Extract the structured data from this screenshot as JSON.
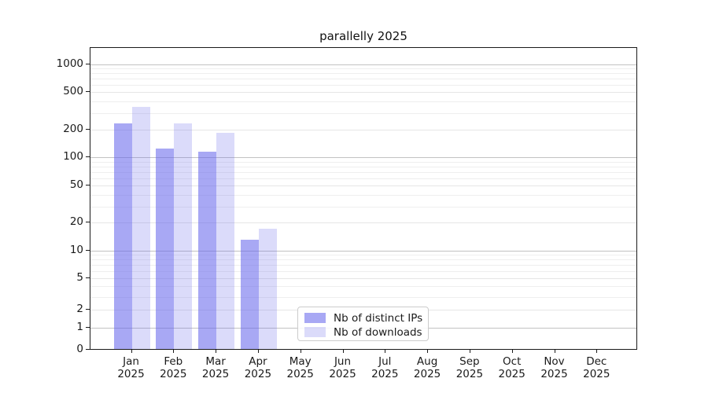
{
  "title": "parallelly 2025",
  "chart_data": {
    "type": "bar",
    "title": "parallelly 2025",
    "x_categories": [
      "Jan",
      "Feb",
      "Mar",
      "Apr",
      "May",
      "Jun",
      "Jul",
      "Aug",
      "Sep",
      "Oct",
      "Nov",
      "Dec"
    ],
    "x_year_label": "2025",
    "series": [
      {
        "name": "Nb of distinct IPs",
        "color": "#6464eb",
        "alpha": 0.56,
        "values": [
          230,
          122,
          114,
          13,
          0,
          0,
          0,
          0,
          0,
          0,
          0,
          0
        ]
      },
      {
        "name": "Nb of downloads",
        "color": "#6464eb",
        "alpha": 0.23,
        "values": [
          345,
          230,
          181,
          17,
          0,
          0,
          0,
          0,
          0,
          0,
          0,
          0
        ]
      }
    ],
    "yscale": "asinh",
    "yticks": [
      0,
      1,
      2,
      5,
      10,
      20,
      50,
      100,
      200,
      500,
      1000
    ],
    "ylim": [
      0,
      1500
    ],
    "grid": true,
    "legend_position": "lower-center"
  },
  "colors": {
    "bar_base": "#6464eb",
    "grid_decade": "#c2c2c2",
    "grid_labeled": "#e6e6e6",
    "grid_minor": "#eeeeee",
    "spine": "#1a1a1a",
    "legend_border": "#cccccc",
    "text": "#1a1a1a"
  }
}
